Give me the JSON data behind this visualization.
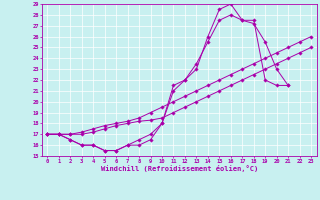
{
  "xlabel": "Windchill (Refroidissement éolien,°C)",
  "bg_color": "#c8f0f0",
  "line_color": "#aa00aa",
  "xlim": [
    -0.5,
    23.5
  ],
  "ylim": [
    15,
    29
  ],
  "yticks": [
    15,
    16,
    17,
    18,
    19,
    20,
    21,
    22,
    23,
    24,
    25,
    26,
    27,
    28,
    29
  ],
  "xticks": [
    0,
    1,
    2,
    3,
    4,
    5,
    6,
    7,
    8,
    9,
    10,
    11,
    12,
    13,
    14,
    15,
    16,
    17,
    18,
    19,
    20,
    21,
    22,
    23
  ],
  "line1": [
    17.0,
    17.0,
    16.5,
    16.0,
    16.0,
    15.5,
    15.5,
    16.0,
    16.0,
    16.5,
    18.0,
    21.5,
    22.0,
    23.0,
    26.0,
    28.5,
    29.0,
    27.5,
    27.5,
    22.0,
    21.5,
    21.5
  ],
  "line2": [
    17.0,
    17.0,
    16.5,
    16.0,
    16.0,
    15.5,
    15.5,
    16.0,
    16.5,
    17.0,
    18.0,
    21.0,
    22.0,
    23.5,
    25.5,
    27.5,
    28.0,
    27.5,
    27.2,
    25.5,
    23.0,
    21.5
  ],
  "line3": [
    17.0,
    17.0,
    17.0,
    17.2,
    17.5,
    17.8,
    18.0,
    18.2,
    18.5,
    19.0,
    19.5,
    20.0,
    20.5,
    21.0,
    21.5,
    22.0,
    22.5,
    23.0,
    23.5,
    24.0,
    24.5,
    25.0,
    25.5,
    26.0
  ],
  "line4": [
    17.0,
    17.0,
    17.0,
    17.0,
    17.2,
    17.5,
    17.8,
    18.0,
    18.2,
    18.3,
    18.5,
    19.0,
    19.5,
    20.0,
    20.5,
    21.0,
    21.5,
    22.0,
    22.5,
    23.0,
    23.5,
    24.0,
    24.5,
    25.0
  ]
}
